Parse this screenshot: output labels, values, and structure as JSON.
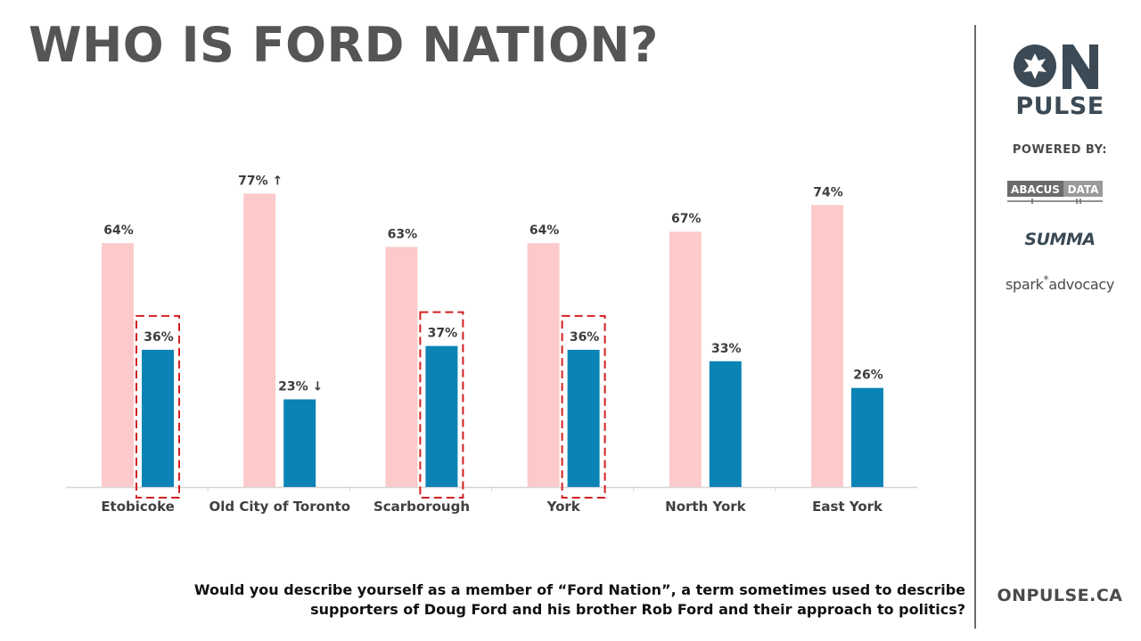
{
  "title": "WHO IS FORD NATION?",
  "question": "Would you describe yourself as a member of “Ford Nation”, a term sometimes used to describe supporters of Doug Ford and his brother Rob Ford and their approach to politics?",
  "sidebar": {
    "logo_on": "ON",
    "logo_pulse": "PULSE",
    "powered_by": "POWERED BY:",
    "abacus_left": "ABACUS",
    "abacus_right": "DATA",
    "summa": "SUMMA",
    "spark_left": "spark",
    "spark_star": "*",
    "spark_right": "advocacy",
    "url": "ONPULSE.CA"
  },
  "colors": {
    "series_no": "#fccaca",
    "series_yes": "#0b84b5",
    "highlight_box": "#d22020",
    "text": "#3d3d3d"
  },
  "chart_data": {
    "type": "bar",
    "categories": [
      "Etobicoke",
      "Old City of Toronto",
      "Scarborough",
      "York",
      "North York",
      "East York"
    ],
    "series": [
      {
        "values": [
          64,
          77,
          63,
          64,
          67,
          74
        ],
        "labels": [
          "64%",
          "77% ↑",
          "63%",
          "64%",
          "67%",
          "74%"
        ]
      },
      {
        "values": [
          36,
          23,
          37,
          36,
          33,
          26
        ],
        "labels": [
          "36%",
          "23% ↓",
          "37%",
          "36%",
          "33%",
          "26%"
        ]
      }
    ],
    "highlighted_categories": [
      "Etobicoke",
      "Scarborough",
      "York"
    ],
    "ylim": [
      0,
      100
    ],
    "grid": false,
    "legend": "none"
  }
}
